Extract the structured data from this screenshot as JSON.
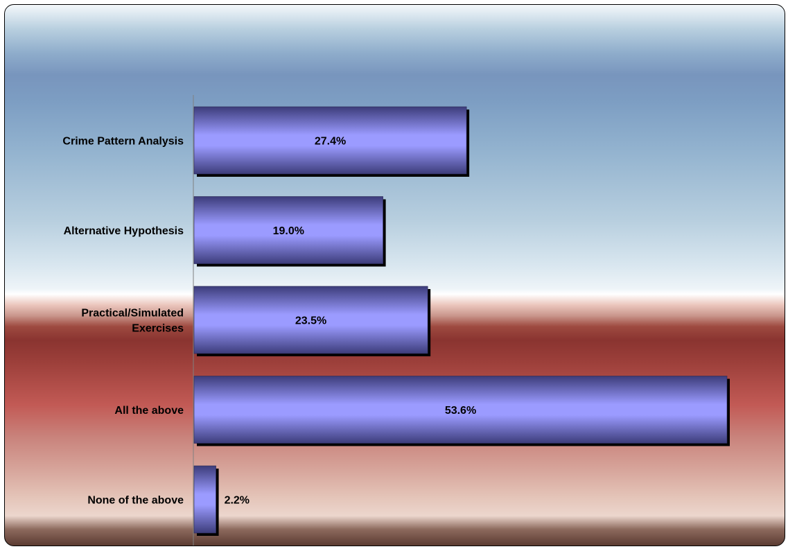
{
  "chart_data": {
    "type": "bar",
    "orientation": "horizontal",
    "categories": [
      "Crime Pattern Analysis",
      "Alternative Hypothesis",
      "Practical/Simulated Exercises",
      "All the above",
      "None of the above"
    ],
    "category_lines": [
      [
        "Crime Pattern Analysis"
      ],
      [
        "Alternative Hypothesis"
      ],
      [
        "Practical/Simulated",
        "Exercises"
      ],
      [
        "All the above"
      ],
      [
        "None of the above"
      ]
    ],
    "values": [
      27.4,
      19.0,
      23.5,
      53.6,
      2.2
    ],
    "value_labels": [
      "27.4%",
      "19.0%",
      "23.5%",
      "53.6%",
      "2.2%"
    ],
    "xlim": [
      0,
      53.6
    ],
    "grid": false,
    "legend": "none",
    "colors": {
      "bar_light": "#9b9bff",
      "bar_dark": "#3c3c7a",
      "shadow": "#000000",
      "axis": "#808080"
    }
  }
}
